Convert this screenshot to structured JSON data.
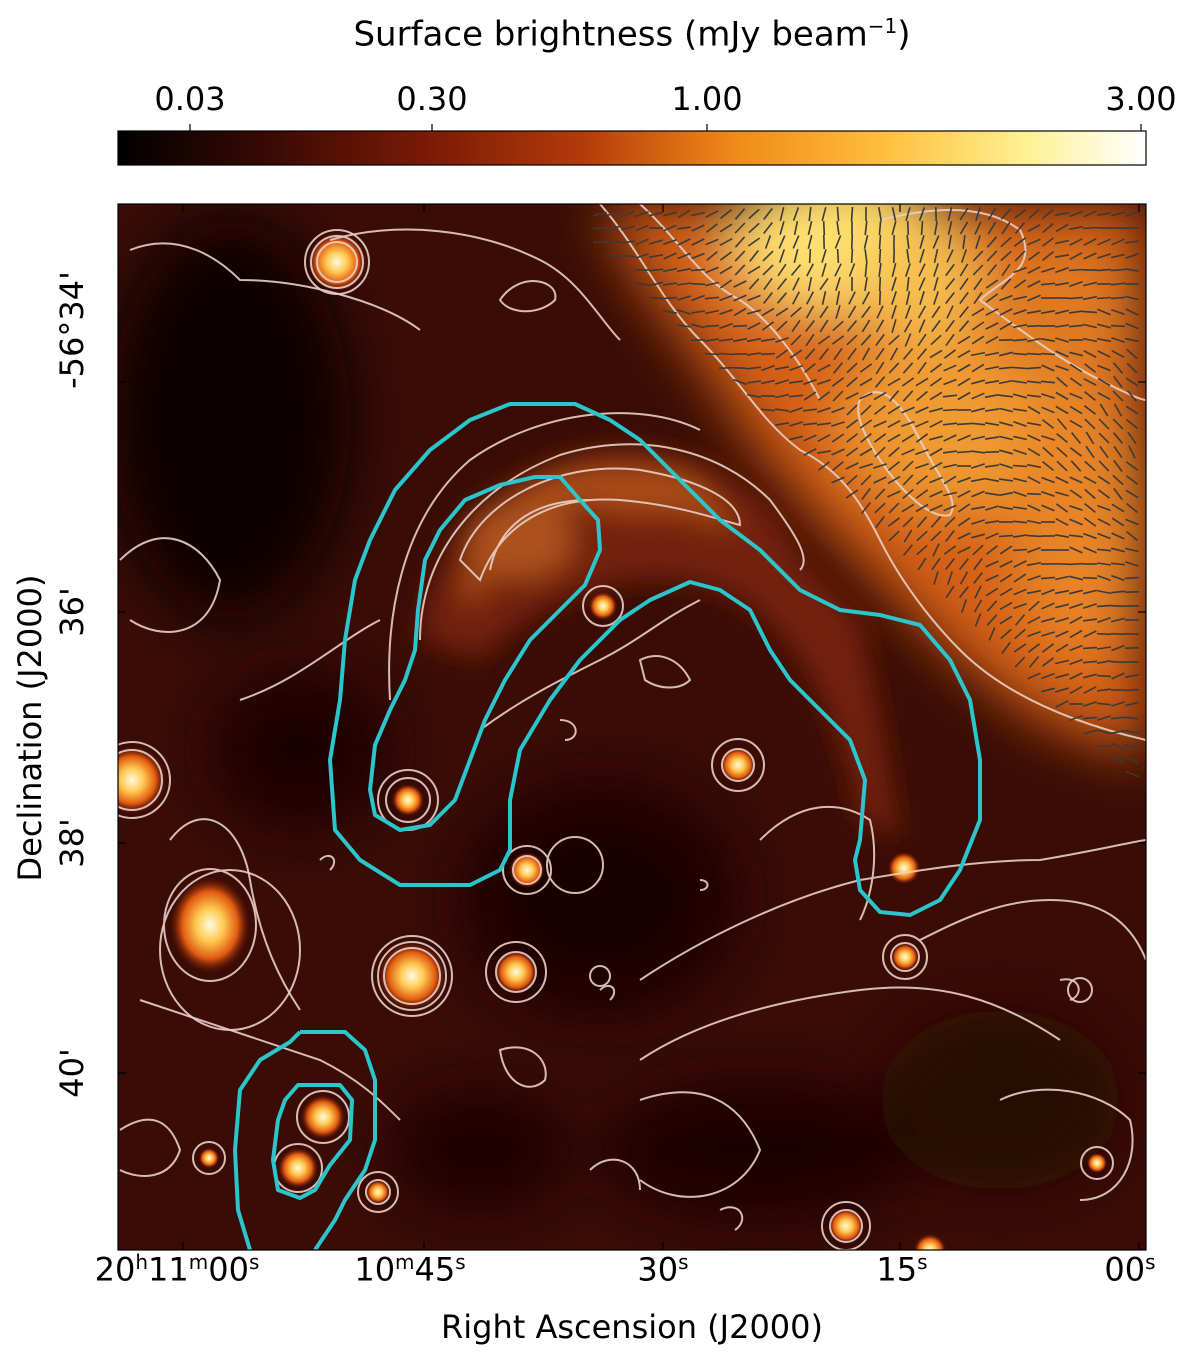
{
  "colorbar": {
    "title": "Surface brightness (mJy beam",
    "title_exp": "−1",
    "title_close": ")",
    "ticks": [
      "0.03",
      "0.30",
      "1.00",
      "3.00"
    ]
  },
  "axes": {
    "xlabel": "Right Ascension (J2000)",
    "ylabel": "Declination (J2000)",
    "ra_ticks": [
      {
        "main": "20",
        "h": "h",
        "m_val": "11",
        "m": "m",
        "s_val": "00",
        "s": "s"
      },
      {
        "main": "10",
        "h": "m",
        "s_val": "45",
        "s": "s"
      },
      {
        "main": "30",
        "h": "s"
      },
      {
        "main": "15",
        "h": "s"
      },
      {
        "main": "00",
        "h": "s"
      }
    ],
    "dec_ticks": [
      "-56°34'",
      "36'",
      "38'",
      "40'"
    ]
  },
  "colors": {
    "background": "#ffffff",
    "contour": "#e8d0c8",
    "region": "#2bc6cc",
    "vectors": "#3a3a3a"
  }
}
